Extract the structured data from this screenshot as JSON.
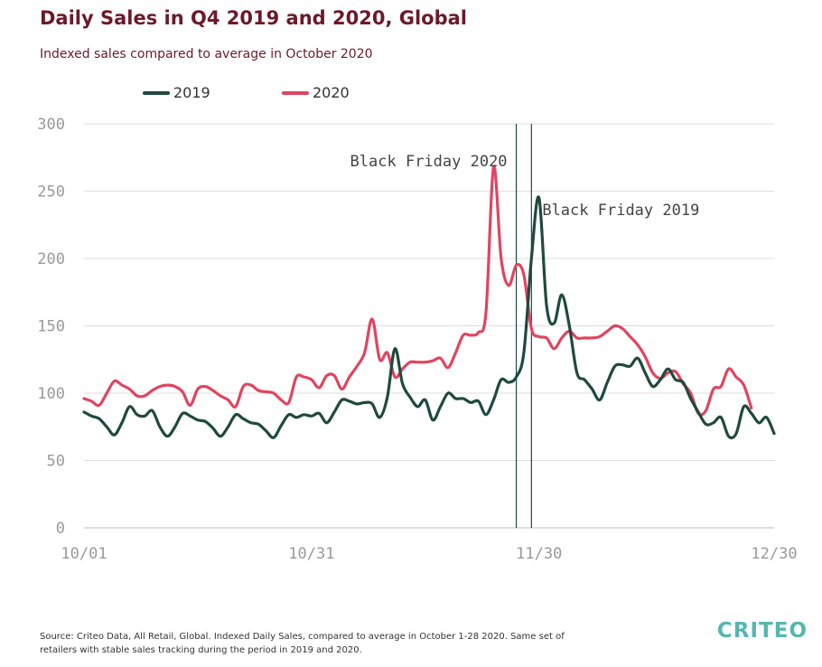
{
  "colors": {
    "series_2019": "#1f4a3e",
    "series_2020": "#e0455f",
    "title": "#6b1a2b",
    "logo": "#56b6b1"
  },
  "chart_data": {
    "type": "line",
    "title": "Daily Sales in Q4 2019 and 2020, Global",
    "subtitle": "Indexed sales compared to average in October 2020",
    "xlabel": "",
    "ylabel": "",
    "ylim": [
      0,
      300
    ],
    "yticks": [
      "0",
      "50",
      "100",
      "150",
      "200",
      "250",
      "300"
    ],
    "xlim": [
      0,
      91
    ],
    "xticks": [
      {
        "pos": 0,
        "label": "10/01"
      },
      {
        "pos": 30,
        "label": "10/31"
      },
      {
        "pos": 60,
        "label": "11/30"
      },
      {
        "pos": 91,
        "label": "12/30"
      }
    ],
    "grid": true,
    "legend_position": "top-left",
    "series": [
      {
        "name": "2019",
        "values": [
          86,
          83,
          81,
          75,
          69,
          78,
          90,
          84,
          83,
          87,
          75,
          68,
          75,
          85,
          83,
          80,
          79,
          74,
          68,
          75,
          84,
          81,
          78,
          77,
          72,
          67,
          76,
          84,
          82,
          84,
          83,
          85,
          78,
          86,
          95,
          94,
          92,
          93,
          92,
          82,
          97,
          133,
          107,
          97,
          90,
          95,
          80,
          90,
          100,
          96,
          96,
          93,
          94,
          84,
          95,
          110,
          108,
          112,
          130,
          200,
          245,
          165,
          152,
          173,
          150,
          115,
          110,
          103,
          95,
          108,
          120,
          121,
          120,
          126,
          115,
          105,
          110,
          118,
          110,
          108,
          96,
          86,
          77,
          78,
          82,
          68,
          70,
          90,
          85,
          78,
          82,
          70
        ]
      },
      {
        "name": "2020",
        "values": [
          96,
          94,
          91,
          100,
          109,
          106,
          103,
          98,
          98,
          102,
          105,
          106,
          105,
          101,
          91,
          103,
          105,
          102,
          98,
          95,
          90,
          105,
          106,
          102,
          101,
          100,
          95,
          93,
          112,
          112,
          110,
          104,
          113,
          113,
          103,
          112,
          120,
          130,
          155,
          125,
          130,
          112,
          118,
          123,
          123,
          123,
          124,
          126,
          119,
          130,
          143,
          143,
          145,
          160,
          268,
          200,
          180,
          195,
          188,
          148,
          142,
          141,
          133,
          141,
          146,
          141,
          141,
          141,
          142,
          146,
          150,
          148,
          142,
          136,
          127,
          115,
          111,
          115,
          116,
          107,
          100,
          85,
          87,
          103,
          105,
          118,
          112,
          106,
          89
        ]
      }
    ],
    "annotations": [
      {
        "label": "Black Friday 2020",
        "x": 57
      },
      {
        "label": "Black Friday 2019",
        "x": 59
      }
    ]
  },
  "footer": {
    "source": "Source: Criteo Data, All Retail, Global. Indexed Daily Sales, compared to average in October 1-28 2020. Same set of retailers with stable sales tracking during the period in 2019 and 2020.",
    "logo": "CRITEO"
  }
}
